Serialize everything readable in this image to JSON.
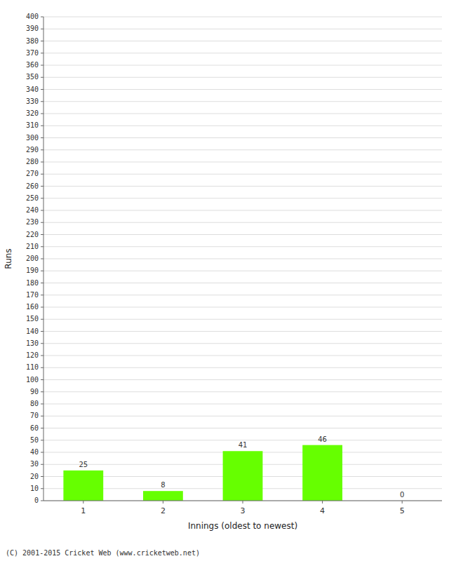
{
  "chart_data": {
    "type": "bar",
    "xlabel": "Innings (oldest to newest)",
    "ylabel": "Runs",
    "categories": [
      1,
      2,
      3,
      4,
      5
    ],
    "values": [
      25,
      8,
      41,
      46,
      0
    ],
    "color": "#66ff00",
    "ylim": [
      0,
      400
    ],
    "yticks": [
      0,
      10,
      20,
      30,
      40,
      50,
      60,
      70,
      80,
      90,
      100,
      110,
      120,
      130,
      140,
      150,
      160,
      170,
      180,
      190,
      200,
      210,
      220,
      230,
      240,
      250,
      260,
      270,
      280,
      290,
      300,
      310,
      320,
      330,
      340,
      350,
      360,
      370,
      380,
      390,
      400
    ],
    "grid": true,
    "data_labels": true,
    "annotations": [
      "(C) 2001-2015 Cricket Web (www.cricketweb.net)"
    ]
  }
}
